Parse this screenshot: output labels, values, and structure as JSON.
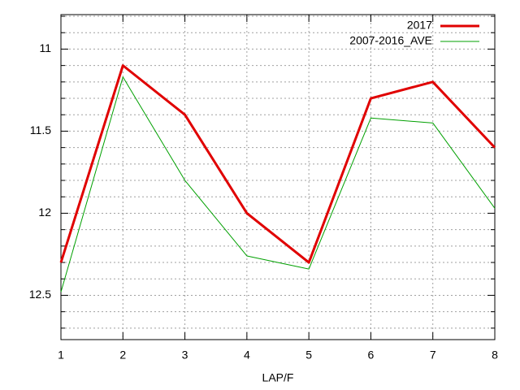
{
  "chart_data": {
    "type": "line",
    "x_label": "LAP/F",
    "x": [
      1,
      2,
      3,
      4,
      5,
      6,
      7,
      8
    ],
    "series": [
      {
        "name": "2017",
        "color": "#e00000",
        "width": 3,
        "values": [
          12.3,
          11.1,
          11.4,
          12.0,
          12.3,
          11.3,
          11.2,
          11.6
        ]
      },
      {
        "name": "2007-2016_AVE",
        "color": "#00a000",
        "width": 1,
        "values": [
          12.48,
          11.17,
          11.8,
          12.26,
          12.34,
          11.42,
          11.45,
          11.97
        ]
      }
    ],
    "xlim": [
      1,
      8
    ],
    "xticks": [
      1,
      2,
      3,
      4,
      5,
      6,
      7,
      8
    ],
    "ylim": [
      10.79,
      12.77
    ],
    "yticks": [
      11,
      11.5,
      12,
      12.5
    ],
    "yminorticks": [
      10.8,
      10.9,
      11.1,
      11.2,
      11.3,
      11.4,
      11.6,
      11.7,
      11.8,
      11.9,
      12.1,
      12.2,
      12.3,
      12.4,
      12.6,
      12.7
    ],
    "yreverse": true,
    "grid": true,
    "legend": "top-right"
  }
}
